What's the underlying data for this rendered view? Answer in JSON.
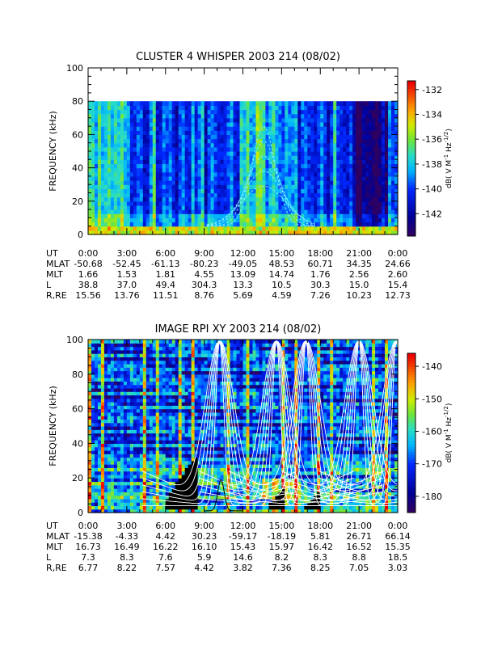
{
  "chart_data": [
    {
      "type": "heatmap",
      "title": "CLUSTER 4 WHISPER 2003 214 (08/02)",
      "ylabel": "FREQUENCY (kHz)",
      "ylim": [
        0,
        100
      ],
      "yticks": [
        0,
        20,
        40,
        60,
        80,
        100
      ],
      "xlim_hours": [
        0,
        24
      ],
      "xtick_hours": [
        0,
        3,
        6,
        9,
        12,
        15,
        18,
        21,
        24
      ],
      "data_upper_freq_khz": 80,
      "colorbar": {
        "label_parts": [
          "dB( V M",
          "-1",
          " Hz",
          "-1/2",
          ")"
        ],
        "range": [
          -143.8,
          -131.3
        ],
        "ticks": [
          -132,
          -134,
          -136,
          -138,
          -140,
          -142
        ]
      },
      "ephemeris": {
        "row_labels": [
          "UT",
          "MLAT",
          "MLT",
          "L",
          "R,RE"
        ],
        "UT": [
          "0:00",
          "3:00",
          "6:00",
          "9:00",
          "12:00",
          "15:00",
          "18:00",
          "21:00",
          "0:00"
        ],
        "MLAT": [
          "-50.68",
          "-52.45",
          "-61.13",
          "-80.23",
          "-49.05",
          "48.53",
          "60.71",
          "34.35",
          "24.66"
        ],
        "MLT": [
          "1.66",
          "1.53",
          "1.81",
          "4.55",
          "13.09",
          "14.74",
          "1.76",
          "2.56",
          "2.60"
        ],
        "L": [
          "38.8",
          "37.0",
          "49.4",
          "304.3",
          "13.3",
          "10.5",
          "30.3",
          "15.0",
          "15.4"
        ],
        "R,RE": [
          "15.56",
          "13.76",
          "11.51",
          "8.76",
          "5.69",
          "4.59",
          "7.26",
          "10.23",
          "12.73"
        ]
      }
    },
    {
      "type": "heatmap",
      "title": "IMAGE RPI XY 2003 214 (08/02)",
      "ylabel": "FREQUENCY (kHz)",
      "ylim": [
        0,
        100
      ],
      "yticks": [
        0,
        20,
        40,
        60,
        80,
        100
      ],
      "xlim_hours": [
        0,
        24
      ],
      "xtick_hours": [
        0,
        3,
        6,
        9,
        12,
        15,
        18,
        21,
        24
      ],
      "data_upper_freq_khz": 100,
      "colorbar": {
        "label_parts": [
          "dB( V M",
          "-1",
          " Hz",
          "-1/2",
          ")"
        ],
        "range": [
          -185,
          -136
        ],
        "ticks": [
          -140,
          -150,
          -160,
          -170,
          -180
        ]
      },
      "ephemeris": {
        "row_labels": [
          "UT",
          "MLAT",
          "MLT",
          "L",
          "R,RE"
        ],
        "UT": [
          "0:00",
          "3:00",
          "6:00",
          "9:00",
          "12:00",
          "15:00",
          "18:00",
          "21:00",
          "0:00"
        ],
        "MLAT": [
          "-15.38",
          "-4.33",
          "4.42",
          "30.23",
          "-59.17",
          "-18.19",
          "5.81",
          "26.71",
          "66.14"
        ],
        "MLT": [
          "16.73",
          "16.49",
          "16.22",
          "16.10",
          "15.43",
          "15.97",
          "16.42",
          "16.52",
          "15.35"
        ],
        "L": [
          "7.3",
          "8.3",
          "7.6",
          "5.9",
          "14.6",
          "8.2",
          "8.3",
          "8.8",
          "18.5"
        ],
        "R,RE": [
          "6.77",
          "8.22",
          "7.57",
          "4.42",
          "3.82",
          "7.36",
          "8.25",
          "7.05",
          "3.03"
        ]
      }
    }
  ]
}
